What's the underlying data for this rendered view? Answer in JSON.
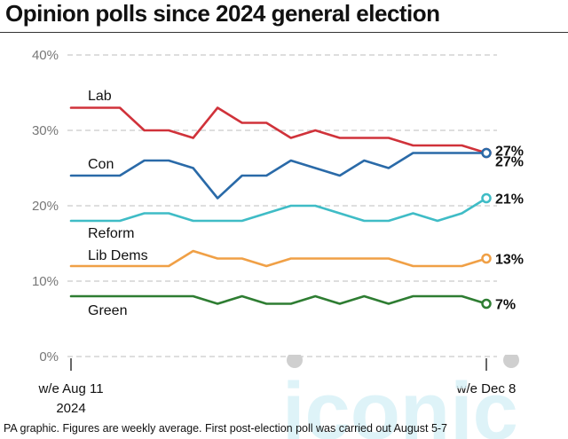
{
  "title": "Opinion polls since 2024 general election",
  "footnote": "PA graphic. Figures are weekly average. First post-election poll was carried out August 5-7",
  "watermark": "iconic",
  "colors": {
    "lab": "#d0323a",
    "con": "#2a6aa8",
    "reform": "#3fbcc6",
    "libdem": "#f0a046",
    "green": "#2e7d32",
    "grid": "#bdbdbd",
    "watermark": "#d9f1f7"
  },
  "chart_data": {
    "type": "line",
    "title": "Opinion polls since 2024 general election",
    "xlabel": "",
    "ylabel": "",
    "ylim": [
      0,
      40
    ],
    "yticks": [
      "0%",
      "10%",
      "20%",
      "30%",
      "40%"
    ],
    "x_tick_labels": [
      {
        "line1": "w/e Aug 11",
        "line2": "2024"
      },
      {
        "line1": "w/e Dec 8",
        "line2": ""
      }
    ],
    "weeks": 18,
    "grid": true,
    "series": [
      {
        "name": "Lab",
        "key": "lab",
        "end_label": "27%",
        "values": [
          33,
          33,
          33,
          30,
          30,
          29,
          33,
          31,
          31,
          29,
          30,
          29,
          29,
          29,
          28,
          28,
          28,
          27
        ]
      },
      {
        "name": "Con",
        "key": "con",
        "end_label": "27%",
        "values": [
          24,
          24,
          24,
          26,
          26,
          25,
          21,
          24,
          24,
          26,
          25,
          24,
          26,
          25,
          27,
          27,
          27,
          27
        ]
      },
      {
        "name": "Reform",
        "key": "reform",
        "end_label": "21%",
        "values": [
          18,
          18,
          18,
          19,
          19,
          18,
          18,
          18,
          19,
          20,
          20,
          19,
          18,
          18,
          19,
          18,
          19,
          21
        ]
      },
      {
        "name": "Lib Dems",
        "key": "libdem",
        "end_label": "13%",
        "values": [
          12,
          12,
          12,
          12,
          12,
          14,
          13,
          13,
          12,
          13,
          13,
          13,
          13,
          13,
          12,
          12,
          12,
          13
        ]
      },
      {
        "name": "Green",
        "key": "green",
        "end_label": "7%",
        "values": [
          8,
          8,
          8,
          8,
          8,
          8,
          7,
          8,
          7,
          7,
          8,
          7,
          8,
          7,
          8,
          8,
          8,
          7
        ]
      }
    ]
  }
}
